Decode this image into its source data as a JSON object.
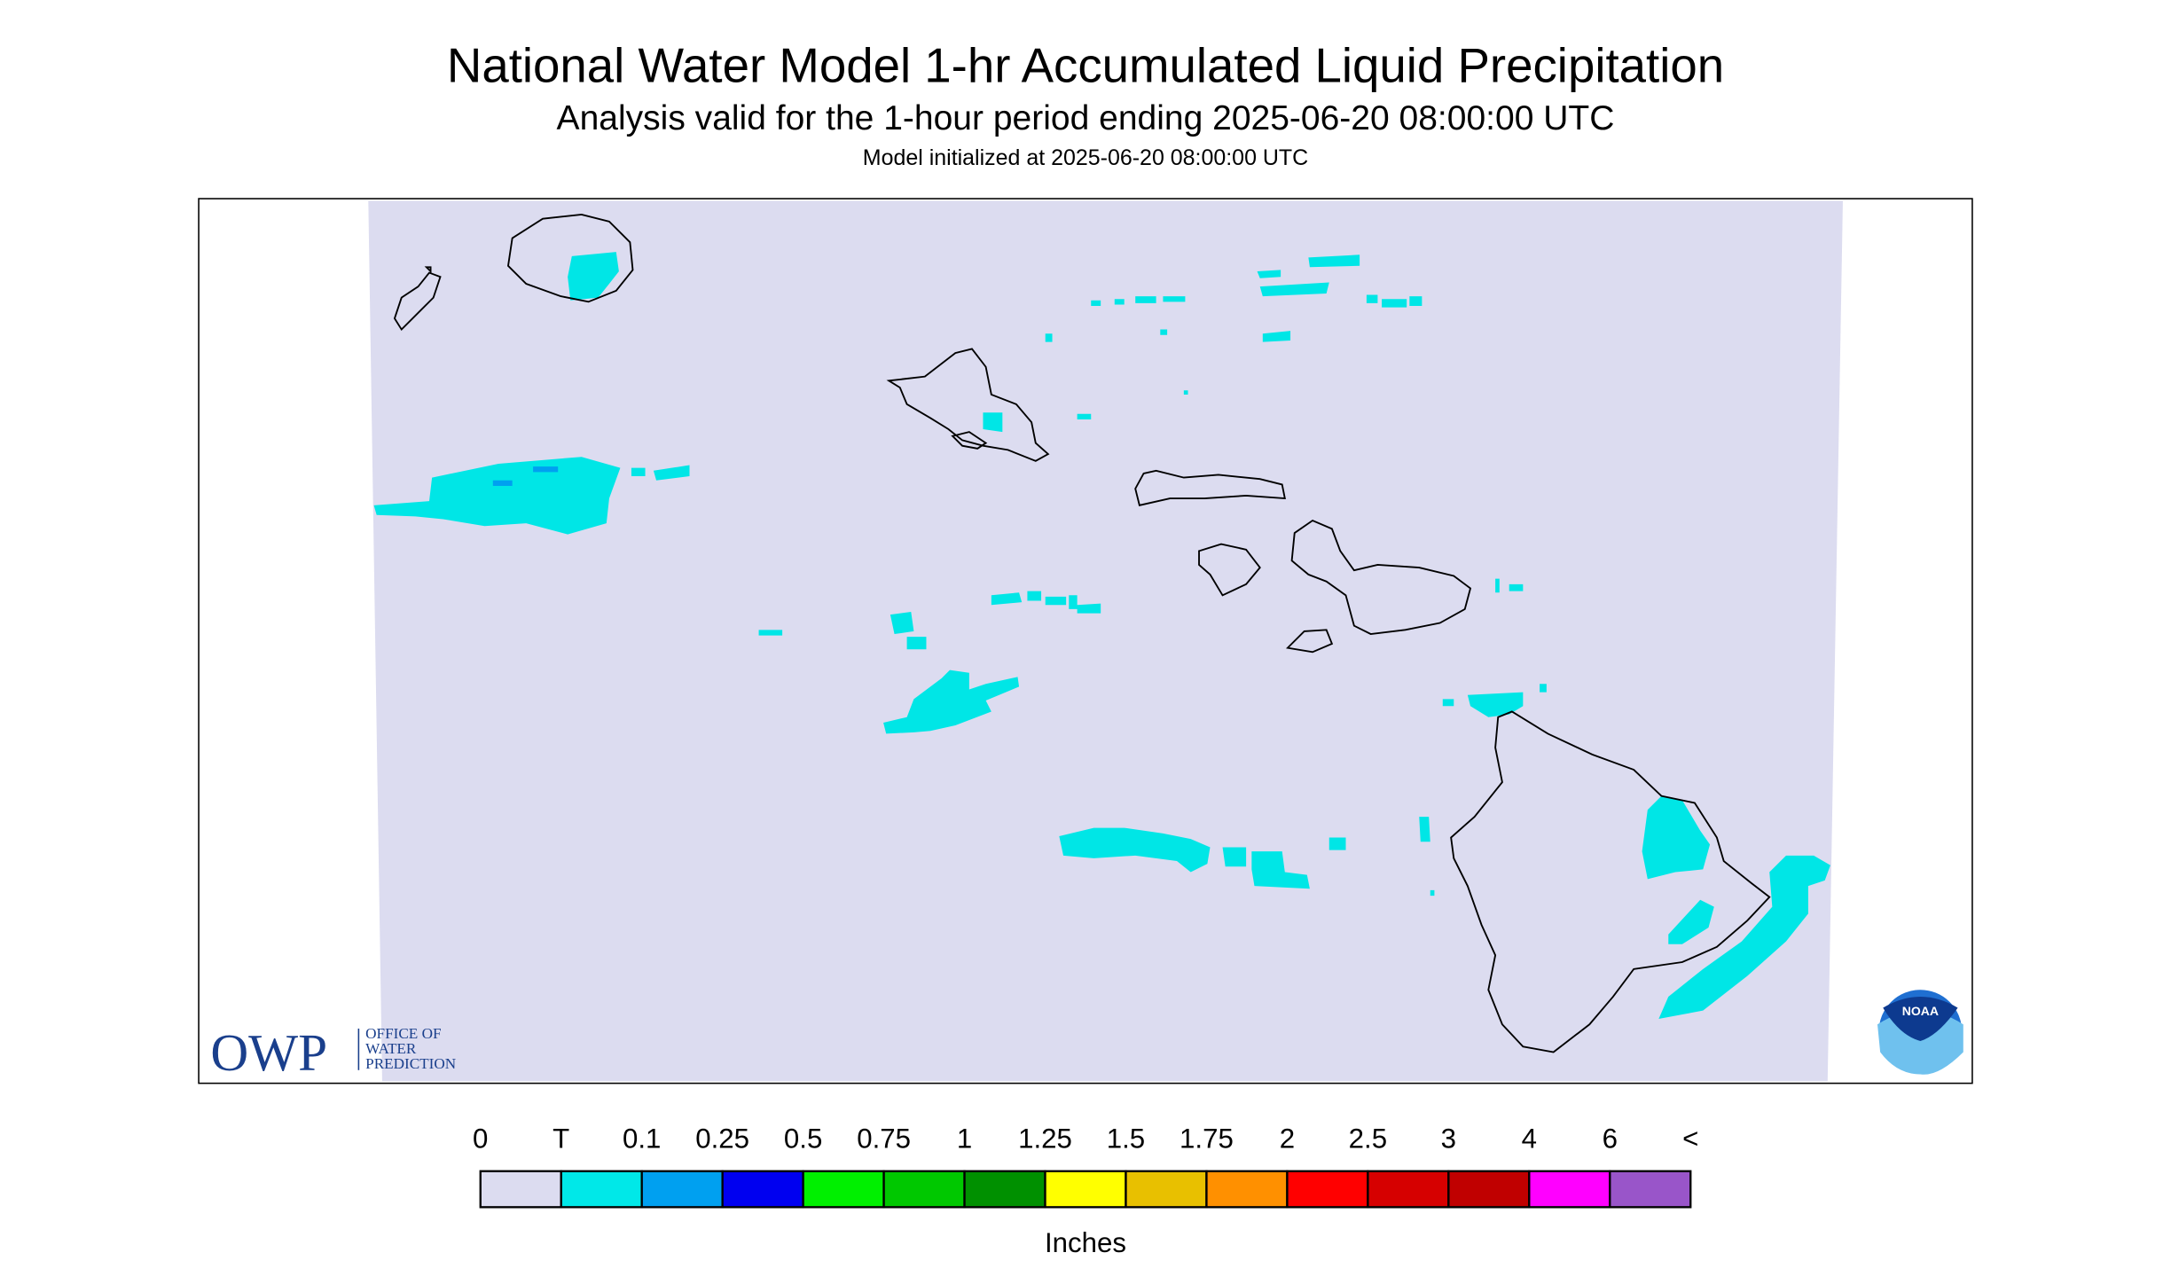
{
  "header": {
    "title": "National Water Model 1-hr Accumulated Liquid Precipitation",
    "subtitle": "Analysis valid for the 1-hour period ending 2025-06-20 08:00:00 UTC",
    "initialized": "Model initialized at 2025-06-20 08:00:00 UTC"
  },
  "legend": {
    "labels": [
      "0",
      "T",
      "0.1",
      "0.25",
      "0.5",
      "0.75",
      "1",
      "1.25",
      "1.5",
      "1.75",
      "2",
      "2.5",
      "3",
      "4",
      "6",
      "<"
    ],
    "colors": [
      "#dcdcf0",
      "#00e8e8",
      "#00a0f0",
      "#0000f0",
      "#00f000",
      "#00c800",
      "#009000",
      "#ffff00",
      "#e8c000",
      "#ff9000",
      "#ff0000",
      "#d60000",
      "#c00000",
      "#ff00ff",
      "#9955c9"
    ],
    "units": "Inches"
  },
  "logos": {
    "owp": "OWP",
    "owp_lines": [
      "OFFICE OF",
      "WATER",
      "PREDICTION"
    ],
    "noaa": "NOAA"
  }
}
